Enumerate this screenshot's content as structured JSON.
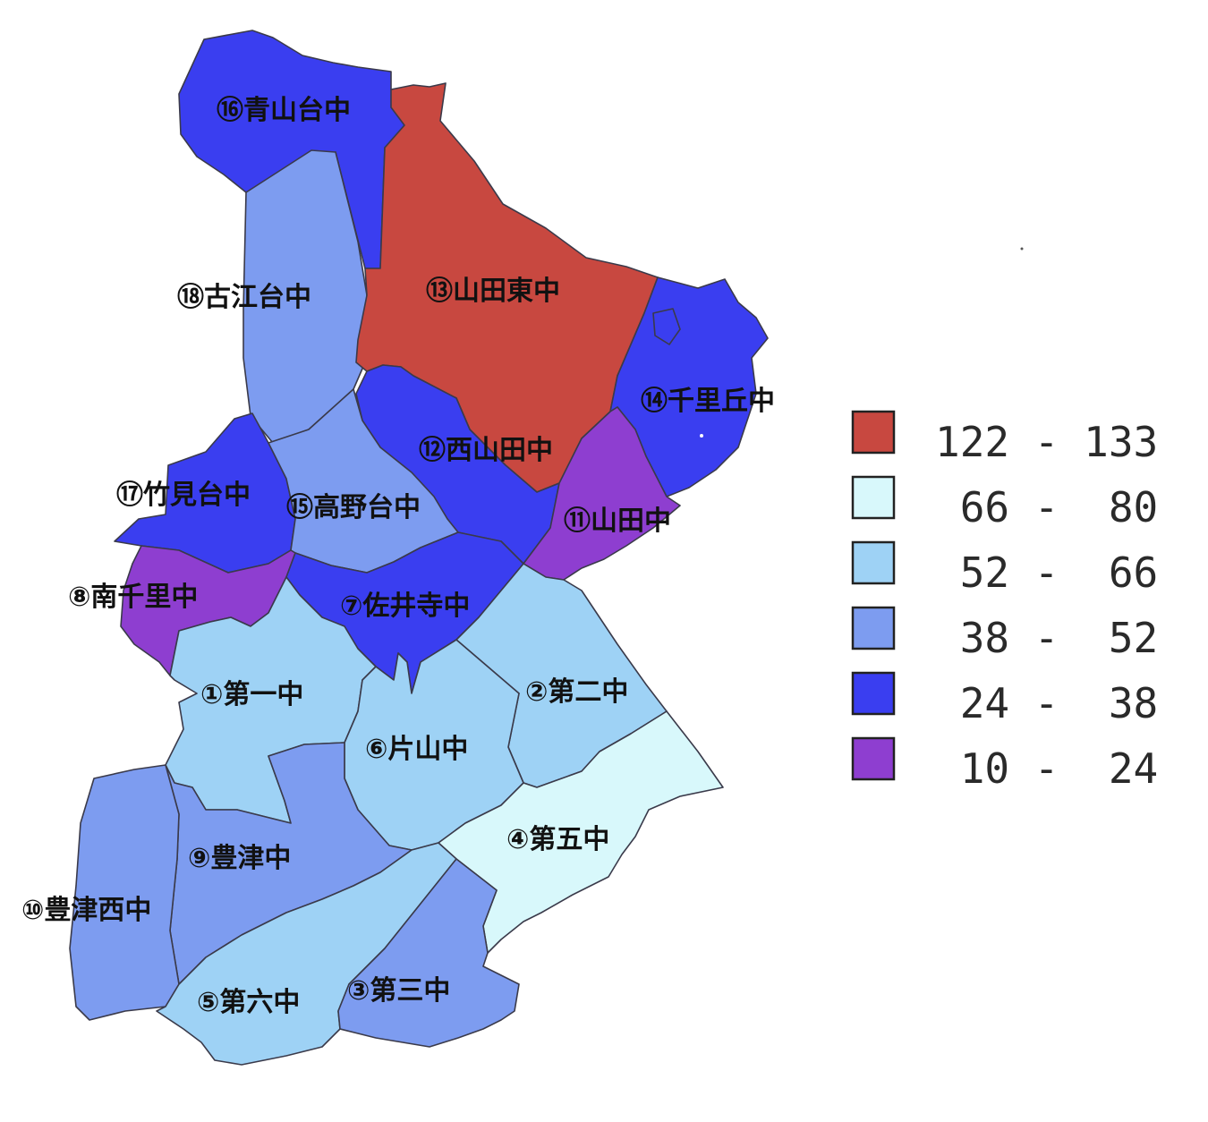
{
  "colors": {
    "c122_133": "#c84840",
    "c66_80": "#d8f8fb",
    "c52_66": "#9ed2f5",
    "c38_52": "#7d9cf0",
    "c24_38": "#3a3ef0",
    "c10_24": "#8e3ed0"
  },
  "districts": [
    {
      "id": "d16",
      "label": "⑯青山台中",
      "class": "24-38"
    },
    {
      "id": "d13",
      "label": "⑬山田東中",
      "class": "122-133"
    },
    {
      "id": "d18",
      "label": "⑱古江台中",
      "class": "38-52"
    },
    {
      "id": "d14",
      "label": "⑭千里丘中",
      "class": "24-38"
    },
    {
      "id": "d12",
      "label": "⑫西山田中",
      "class": "24-38"
    },
    {
      "id": "d17",
      "label": "⑰竹見台中",
      "class": "24-38"
    },
    {
      "id": "d15",
      "label": "⑮高野台中",
      "class": "38-52"
    },
    {
      "id": "d11",
      "label": "⑪山田中",
      "class": "10-24"
    },
    {
      "id": "d8",
      "label": "⑧南千里中",
      "class": "10-24"
    },
    {
      "id": "d7",
      "label": "⑦佐井寺中",
      "class": "24-38"
    },
    {
      "id": "d1",
      "label": "①第一中",
      "class": "52-66"
    },
    {
      "id": "d2",
      "label": "②第二中",
      "class": "52-66"
    },
    {
      "id": "d6",
      "label": "⑥片山中",
      "class": "52-66"
    },
    {
      "id": "d4",
      "label": "④第五中",
      "class": "66-80"
    },
    {
      "id": "d9",
      "label": "⑨豊津中",
      "class": "38-52"
    },
    {
      "id": "d10",
      "label": "⑩豊津西中",
      "class": "38-52"
    },
    {
      "id": "d5",
      "label": "⑤第六中",
      "class": "52-66"
    },
    {
      "id": "d3",
      "label": "③第三中",
      "class": "38-52"
    }
  ],
  "legend": [
    {
      "range": "122 - 133",
      "color": "#c84840"
    },
    {
      "range": " 66 -  80",
      "color": "#d8f8fb"
    },
    {
      "range": " 52 -  66",
      "color": "#9ed2f5"
    },
    {
      "range": " 38 -  52",
      "color": "#7d9cf0"
    },
    {
      "range": " 24 -  38",
      "color": "#3a3ef0"
    },
    {
      "range": " 10 -  24",
      "color": "#8e3ed0"
    }
  ]
}
